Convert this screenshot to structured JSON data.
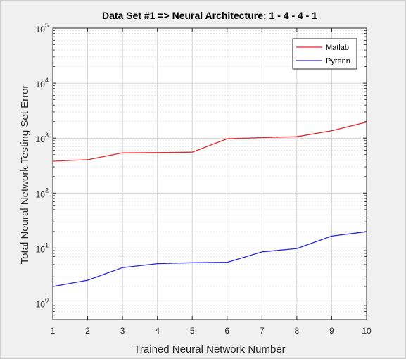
{
  "chart_data": {
    "type": "line",
    "title": "Data Set #1 => Neural Architecture: 1 - 4 - 4 - 1",
    "xlabel": "Trained Neural Network Number",
    "ylabel": "Total Neural Network Testing Set Error",
    "x": [
      1,
      2,
      3,
      4,
      5,
      6,
      7,
      8,
      9,
      10
    ],
    "xlim": [
      1,
      10
    ],
    "ylim": [
      0.5,
      100000
    ],
    "yscale": "log",
    "grid": true,
    "legend_position": "top-right",
    "x_tick_labels": [
      "1",
      "2",
      "3",
      "4",
      "5",
      "6",
      "7",
      "8",
      "9",
      "10"
    ],
    "y_ticks": [
      {
        "base": "10",
        "exp": "0",
        "value": 1
      },
      {
        "base": "10",
        "exp": "1",
        "value": 10
      },
      {
        "base": "10",
        "exp": "2",
        "value": 100
      },
      {
        "base": "10",
        "exp": "3",
        "value": 1000
      },
      {
        "base": "10",
        "exp": "4",
        "value": 10000
      },
      {
        "base": "10",
        "exp": "5",
        "value": 100000
      }
    ],
    "series": [
      {
        "name": "Matlab",
        "color": "#e8262b",
        "values": [
          380,
          405,
          540,
          545,
          555,
          970,
          1020,
          1060,
          1360,
          1950
        ]
      },
      {
        "name": "Pyrenn",
        "color": "#2626e0",
        "values": [
          2.0,
          2.6,
          4.4,
          5.2,
          5.4,
          5.5,
          8.5,
          9.8,
          16.5,
          19.8
        ]
      }
    ]
  }
}
